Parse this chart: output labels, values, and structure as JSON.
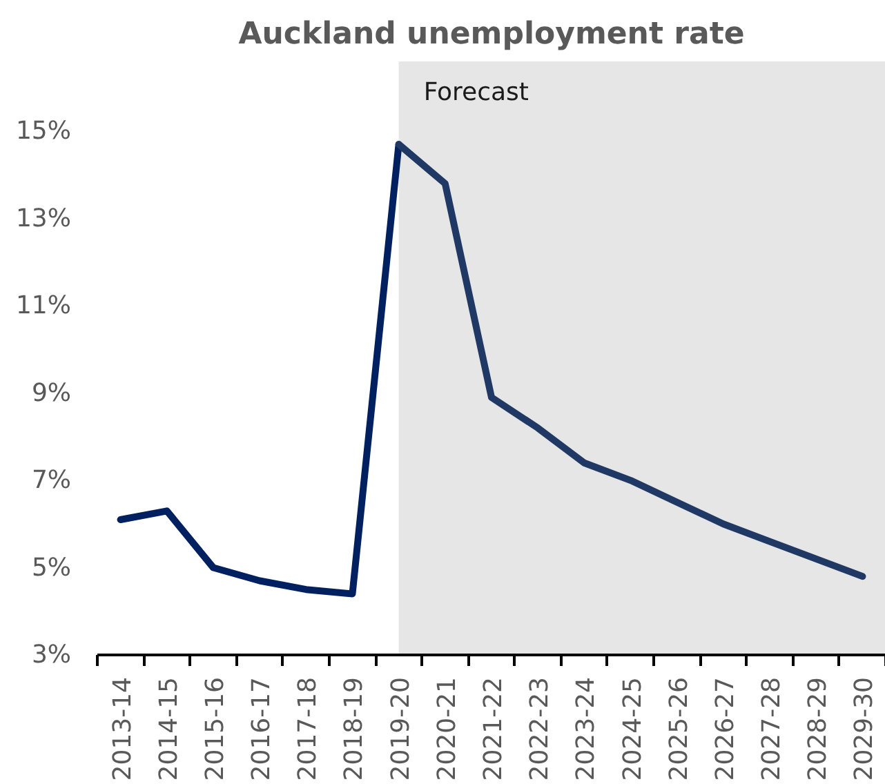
{
  "chart_data": {
    "type": "line",
    "title": "Auckland unemployment rate",
    "categories": [
      "2013-14",
      "2014-15",
      "2015-16",
      "2016-17",
      "2017-18",
      "2018-19",
      "2019-20",
      "2020-21",
      "2021-22",
      "2022-23",
      "2023-24",
      "2024-25",
      "2025-26",
      "2026-27",
      "2027-28",
      "2028-29",
      "2029-30"
    ],
    "series": [
      {
        "color": "#002060",
        "values": [
          6.1,
          6.3,
          5.0,
          4.7,
          4.5,
          4.4,
          14.7,
          null,
          null,
          null,
          null,
          null,
          null,
          null,
          null,
          null,
          null
        ]
      },
      {
        "color": "#1f3864",
        "values": [
          null,
          null,
          null,
          null,
          null,
          null,
          14.7,
          13.8,
          8.9,
          8.2,
          7.4,
          7.0,
          6.5,
          6.0,
          5.6,
          5.2,
          4.8
        ]
      }
    ],
    "ylim": [
      3,
      16.6
    ],
    "yticks": [
      {
        "value": 3,
        "label": "3%"
      },
      {
        "value": 5,
        "label": "5%"
      },
      {
        "value": 7,
        "label": "7%"
      },
      {
        "value": 9,
        "label": "9%"
      },
      {
        "value": 11,
        "label": "11%"
      },
      {
        "value": 13,
        "label": "13%"
      },
      {
        "value": 15,
        "label": "15%"
      }
    ],
    "bands": [
      {
        "axis": "x",
        "from": "2019-20",
        "to": "2029-30",
        "label": "Forecast",
        "color": "#e6e6e6"
      }
    ],
    "grid": false
  }
}
